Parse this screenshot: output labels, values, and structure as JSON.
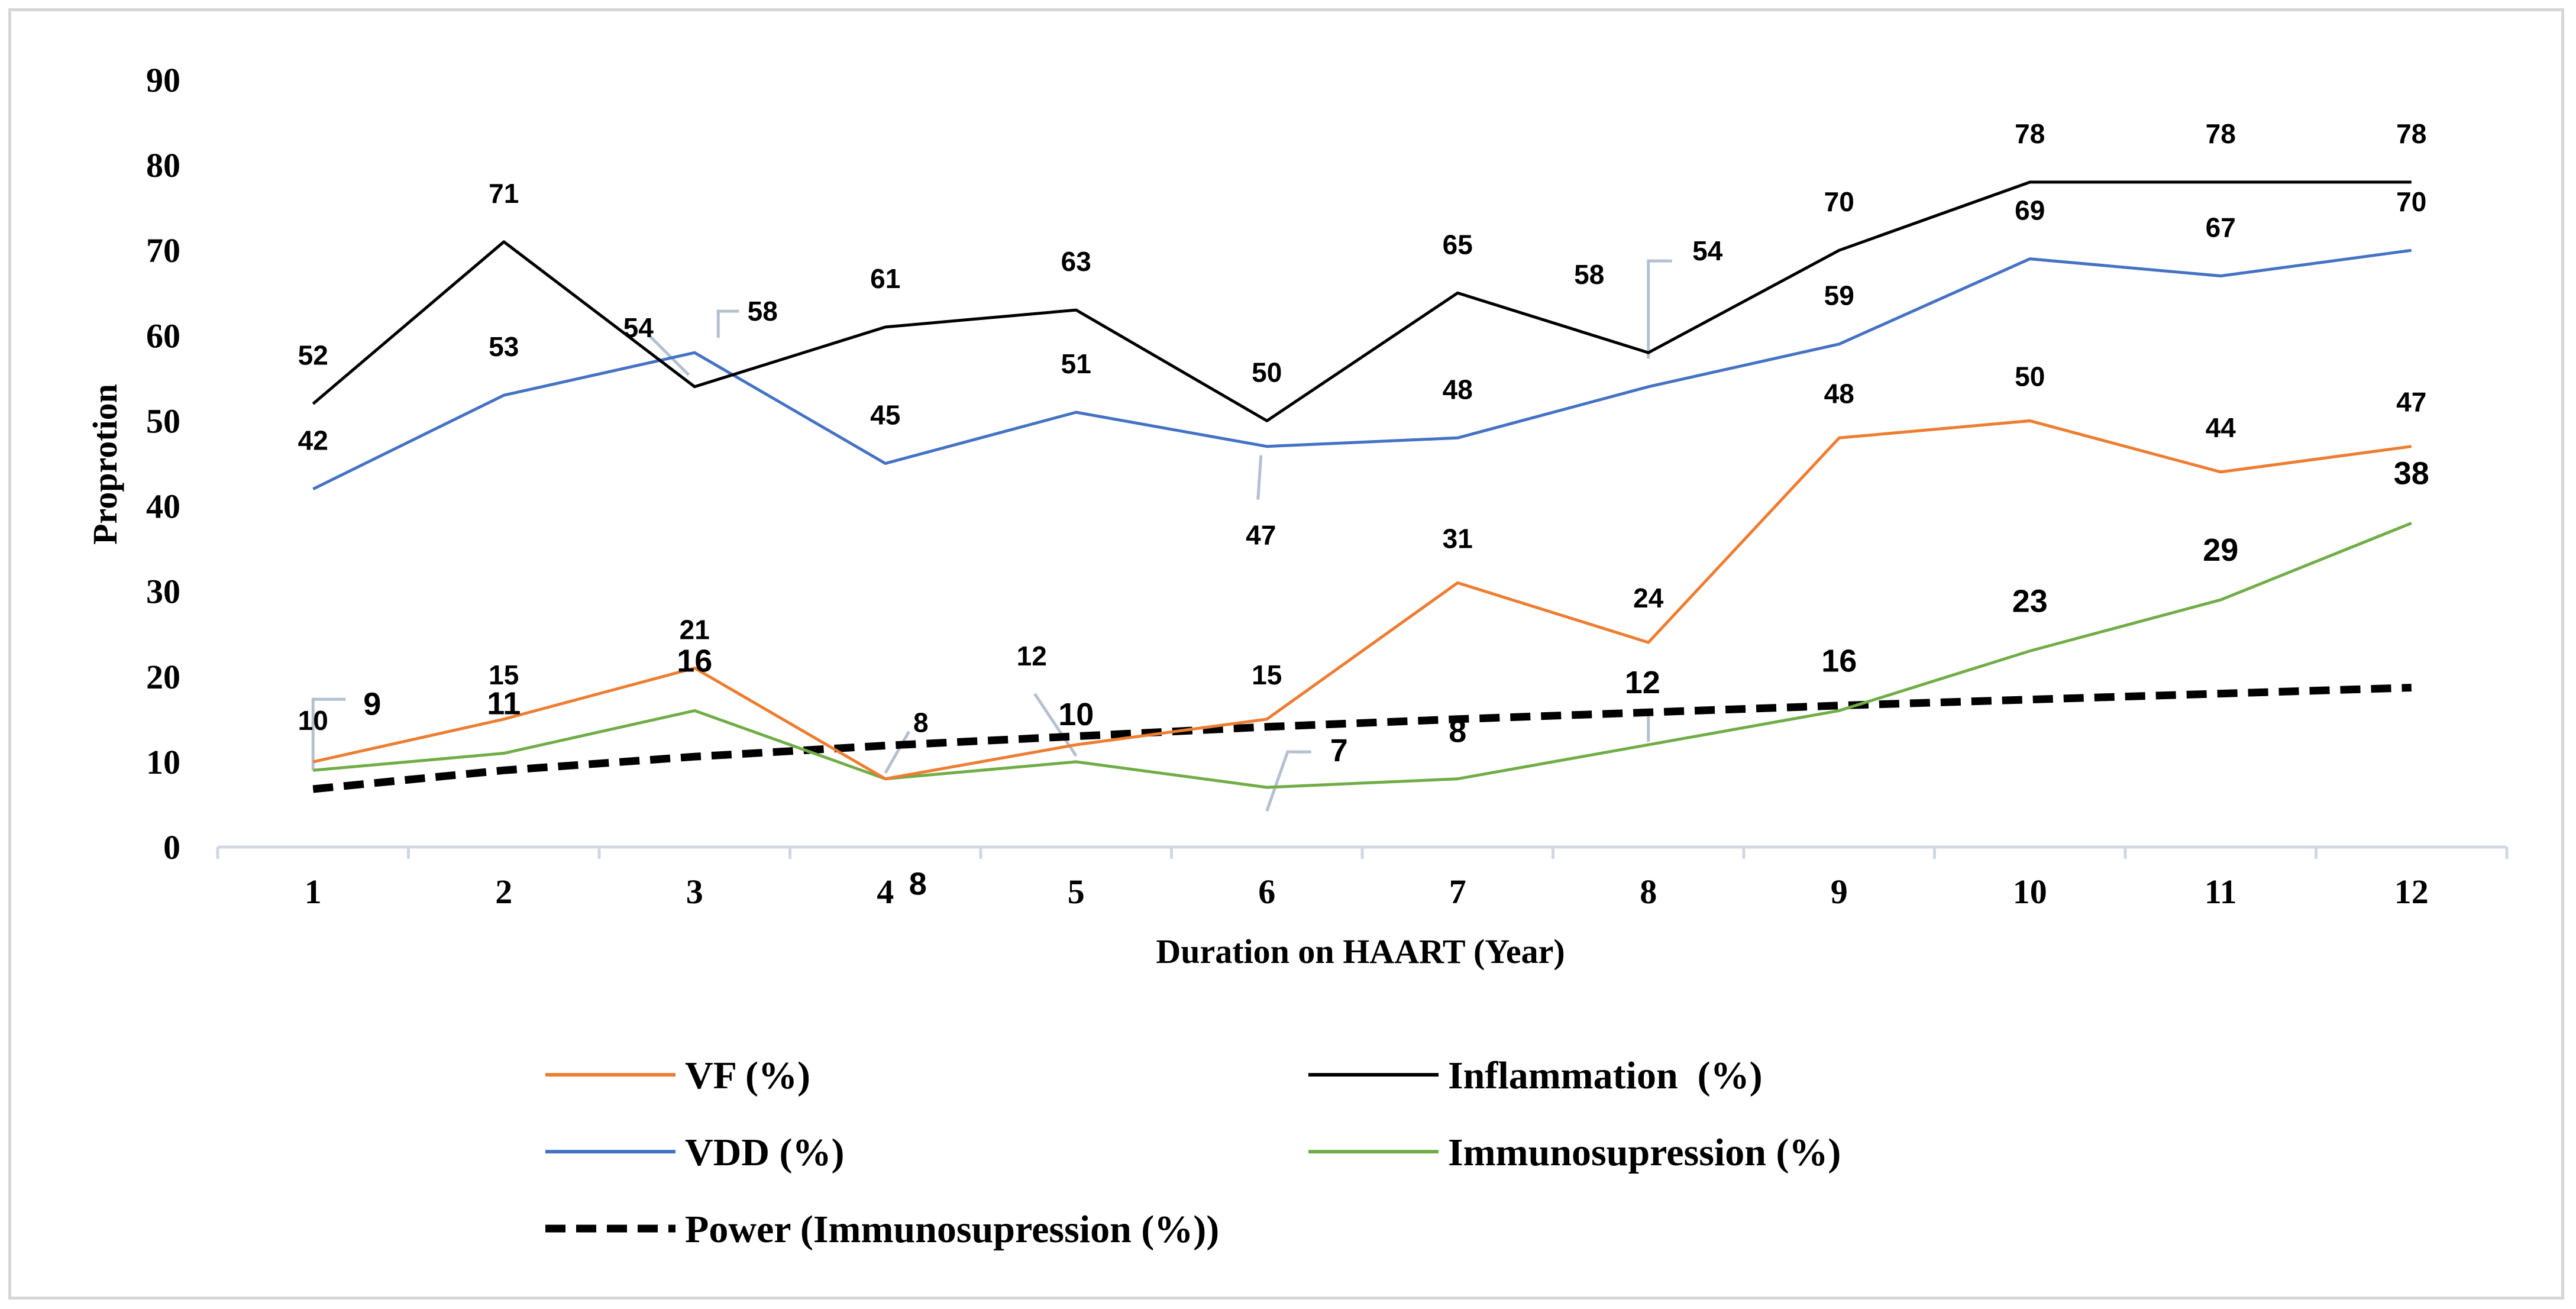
{
  "chart_data": {
    "type": "line",
    "xlabel": "Duration on HAART (Year)",
    "ylabel": "Proprotion",
    "ylim": [
      0,
      90
    ],
    "yticks": [
      "0",
      "10",
      "20",
      "30",
      "40",
      "50",
      "60",
      "70",
      "80",
      "90"
    ],
    "categories": [
      "1",
      "2",
      "3",
      "4",
      "5",
      "6",
      "7",
      "8",
      "9",
      "10",
      "11",
      "12"
    ],
    "grid": false,
    "legend_position": "bottom",
    "series": [
      {
        "name": "VF (%)",
        "color": "#ed7d31",
        "values": [
          10,
          15,
          21,
          8,
          12,
          15,
          31,
          24,
          48,
          50,
          44,
          47
        ],
        "labels": [
          "10",
          "15",
          "21",
          "8",
          "12",
          "15",
          "31",
          "24",
          "48",
          "50",
          "44",
          "47"
        ]
      },
      {
        "name": "Inflammation  (%)",
        "color": "#000000",
        "values": [
          52,
          71,
          54,
          61,
          63,
          50,
          65,
          58,
          70,
          78,
          78,
          78
        ],
        "labels": [
          "52",
          "71",
          "54",
          "61",
          "63",
          "50",
          "65",
          "58",
          "70",
          "78",
          "78",
          "78"
        ]
      },
      {
        "name": "VDD (%)",
        "color": "#4472c4",
        "values": [
          42,
          53,
          58,
          45,
          51,
          47,
          48,
          54,
          59,
          69,
          67,
          70
        ],
        "labels": [
          "42",
          "53",
          "58",
          "45",
          "51",
          "47",
          "48",
          "54",
          "59",
          "69",
          "67",
          "70"
        ]
      },
      {
        "name": "Immunosupression (%)",
        "color": "#70ad47",
        "values": [
          9,
          11,
          16,
          8,
          10,
          7,
          8,
          12,
          16,
          23,
          29,
          38
        ],
        "labels": [
          "9",
          "11",
          "16",
          "8",
          "10",
          "7",
          "8",
          "12",
          "16",
          "23",
          "29",
          "38"
        ]
      },
      {
        "name": "Power (Immunosupression (%))",
        "color": "#000000",
        "style": "dashed",
        "values": [
          6.8,
          9.0,
          10.6,
          11.9,
          13.0,
          14.1,
          15.0,
          15.8,
          16.6,
          17.3,
          18.0,
          18.7
        ],
        "labels": []
      }
    ]
  }
}
